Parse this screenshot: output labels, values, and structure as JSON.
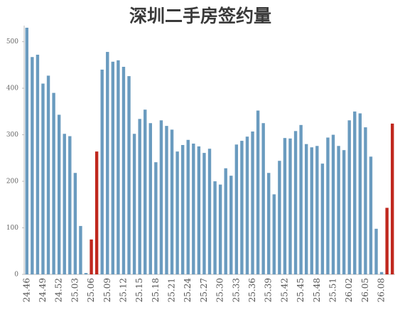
{
  "chart_data": {
    "type": "bar",
    "title": "深圳二手房签约量",
    "categories": [
      "24.46",
      null,
      null,
      "24.49",
      null,
      null,
      "24.52",
      null,
      null,
      "25.03",
      null,
      null,
      "25.06",
      null,
      null,
      "25.09",
      null,
      null,
      "25.12",
      null,
      null,
      "25.15",
      null,
      null,
      "25.18",
      null,
      null,
      "25.21",
      null,
      null,
      "25.24",
      null,
      null,
      "25.27",
      null,
      null,
      "25.30",
      null,
      null,
      "25.33",
      null,
      null,
      "25.36",
      null,
      null,
      "25.39",
      null,
      null,
      "25.42",
      null,
      null,
      "25.45",
      null,
      null,
      "25.48",
      null,
      null,
      "25.51",
      null,
      null,
      "26.02",
      null,
      null,
      "26.05",
      null,
      null,
      "26.08",
      null,
      null
    ],
    "values": [
      530,
      467,
      472,
      410,
      427,
      390,
      343,
      302,
      297,
      218,
      104,
      3,
      75,
      264,
      440,
      478,
      457,
      460,
      446,
      426,
      302,
      334,
      354,
      325,
      241,
      331,
      319,
      311,
      264,
      278,
      289,
      281,
      275,
      261,
      270,
      200,
      193,
      228,
      212,
      279,
      287,
      296,
      307,
      352,
      325,
      218,
      172,
      244,
      293,
      292,
      308,
      321,
      280,
      273,
      276,
      238,
      294,
      300,
      276,
      267,
      331,
      350,
      346,
      316,
      253,
      98,
      5,
      143,
      324
    ],
    "colors": [
      "#6a9bbf",
      "#6a9bbf",
      "#6a9bbf",
      "#6a9bbf",
      "#6a9bbf",
      "#6a9bbf",
      "#6a9bbf",
      "#6a9bbf",
      "#6a9bbf",
      "#6a9bbf",
      "#6a9bbf",
      "#6a9bbf",
      "#c0281e",
      "#c0281e",
      "#6a9bbf",
      "#6a9bbf",
      "#6a9bbf",
      "#6a9bbf",
      "#6a9bbf",
      "#6a9bbf",
      "#6a9bbf",
      "#6a9bbf",
      "#6a9bbf",
      "#6a9bbf",
      "#6a9bbf",
      "#6a9bbf",
      "#6a9bbf",
      "#6a9bbf",
      "#6a9bbf",
      "#6a9bbf",
      "#6a9bbf",
      "#6a9bbf",
      "#6a9bbf",
      "#6a9bbf",
      "#6a9bbf",
      "#6a9bbf",
      "#6a9bbf",
      "#6a9bbf",
      "#6a9bbf",
      "#6a9bbf",
      "#6a9bbf",
      "#6a9bbf",
      "#6a9bbf",
      "#6a9bbf",
      "#6a9bbf",
      "#6a9bbf",
      "#6a9bbf",
      "#6a9bbf",
      "#6a9bbf",
      "#6a9bbf",
      "#6a9bbf",
      "#6a9bbf",
      "#6a9bbf",
      "#6a9bbf",
      "#6a9bbf",
      "#6a9bbf",
      "#6a9bbf",
      "#6a9bbf",
      "#6a9bbf",
      "#6a9bbf",
      "#6a9bbf",
      "#6a9bbf",
      "#6a9bbf",
      "#6a9bbf",
      "#6a9bbf",
      "#6a9bbf",
      "#6a9bbf",
      "#c0281e",
      "#c0281e"
    ],
    "ylim": [
      0,
      530
    ],
    "yticks": [
      0,
      100,
      200,
      300,
      400,
      500
    ],
    "grid": false
  }
}
